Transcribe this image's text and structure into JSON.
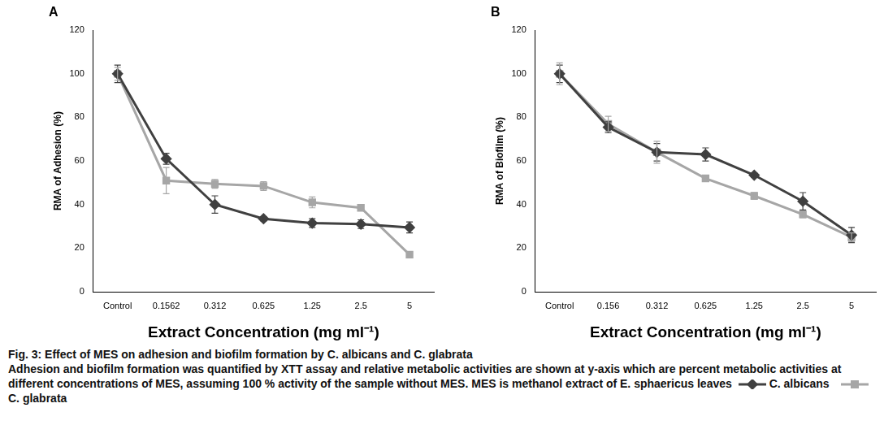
{
  "chart_data": [
    {
      "type": "line",
      "title": "A",
      "x_label": "Extract Concentration (mg ml⁻¹)",
      "y_label": "RMA of Adhesion (%)",
      "categories": [
        "Control",
        "0.1562",
        "0.312",
        "0.625",
        "1.25",
        "2.5",
        "5"
      ],
      "series": [
        {
          "name": "C. albicans",
          "color": "#404040",
          "marker": "diamond",
          "values": [
            100,
            61,
            40,
            33.5,
            31.5,
            31,
            29.5
          ],
          "errors": [
            4,
            2.5,
            4,
            1,
            2,
            2,
            2.5
          ]
        },
        {
          "name": "C. glabrata",
          "color": "#a6a6a6",
          "marker": "square",
          "values": [
            100,
            51,
            49.5,
            48.5,
            41,
            38.5,
            17
          ],
          "errors": [
            3,
            6,
            2,
            2,
            2.5,
            1,
            1
          ]
        }
      ],
      "ylim": [
        0,
        120
      ],
      "yticks": [
        0,
        20,
        40,
        60,
        80,
        100,
        120
      ],
      "grid": false
    },
    {
      "type": "line",
      "title": "B",
      "x_label": "Extract Concentration (mg ml⁻¹)",
      "y_label": "RMA of Biofilm (%)",
      "categories": [
        "Control",
        "0.156",
        "0.312",
        "0.625",
        "1.25",
        "2.5",
        "5"
      ],
      "series": [
        {
          "name": "C. albicans",
          "color": "#404040",
          "marker": "diamond",
          "values": [
            100,
            75.5,
            64,
            63,
            53.5,
            41.5,
            26
          ],
          "errors": [
            4,
            2.5,
            4,
            3,
            1,
            4,
            3.5
          ]
        },
        {
          "name": "C. glabrata",
          "color": "#a6a6a6",
          "marker": "square",
          "values": [
            100,
            77,
            64,
            52,
            44,
            35.5,
            25
          ],
          "errors": [
            5,
            3.5,
            5,
            1,
            1.5,
            1.5,
            2
          ]
        }
      ],
      "ylim": [
        0,
        120
      ],
      "yticks": [
        0,
        20,
        40,
        60,
        80,
        100,
        120
      ],
      "grid": false
    }
  ],
  "caption": {
    "title": "Fig. 3: Effect of MES on adhesion and biofilm formation by C. albicans and C. glabrata",
    "text": "Adhesion and biofilm formation was quantified by XTT assay and relative metabolic activities are shown at y-axis which are percent metabolic activities at different concentrations of MES, assuming 100 % activity of the sample without MES. MES is methanol extract of E. sphaericus leaves"
  }
}
